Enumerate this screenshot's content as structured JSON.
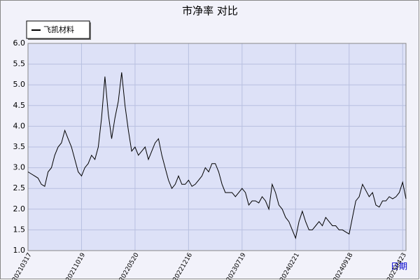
{
  "chart_data": {
    "type": "line",
    "title": "市净率 对比",
    "xlabel": "日期",
    "series": [
      {
        "name": "飞凯材料",
        "color": "#000000",
        "values": [
          2.9,
          2.85,
          2.8,
          2.75,
          2.6,
          2.55,
          2.9,
          3.0,
          3.3,
          3.5,
          3.6,
          3.9,
          3.7,
          3.5,
          3.2,
          2.9,
          2.8,
          3.0,
          3.1,
          3.3,
          3.2,
          3.5,
          4.2,
          5.2,
          4.3,
          3.7,
          4.2,
          4.6,
          5.3,
          4.5,
          3.9,
          3.4,
          3.5,
          3.3,
          3.4,
          3.5,
          3.2,
          3.4,
          3.6,
          3.7,
          3.3,
          3.0,
          2.7,
          2.5,
          2.6,
          2.8,
          2.6,
          2.6,
          2.7,
          2.55,
          2.6,
          2.7,
          2.8,
          3.0,
          2.9,
          3.1,
          3.1,
          2.9,
          2.6,
          2.4,
          2.4,
          2.4,
          2.3,
          2.4,
          2.5,
          2.4,
          2.1,
          2.2,
          2.2,
          2.15,
          2.3,
          2.2,
          2.0,
          2.6,
          2.4,
          2.1,
          2.0,
          1.8,
          1.7,
          1.5,
          1.3,
          1.7,
          1.95,
          1.7,
          1.5,
          1.5,
          1.6,
          1.7,
          1.6,
          1.8,
          1.7,
          1.6,
          1.6,
          1.5,
          1.5,
          1.45,
          1.4,
          1.8,
          2.2,
          2.3,
          2.6,
          2.45,
          2.3,
          2.4,
          2.1,
          2.05,
          2.2,
          2.2,
          2.3,
          2.25,
          2.3,
          2.4,
          2.65,
          2.25
        ]
      }
    ],
    "xlim": [
      0,
      113
    ],
    "xticks": [
      {
        "value": 0,
        "label": "20210317"
      },
      {
        "value": 16,
        "label": "20211019"
      },
      {
        "value": 32,
        "label": "20220520"
      },
      {
        "value": 48,
        "label": "20221216"
      },
      {
        "value": 64,
        "label": "20230719"
      },
      {
        "value": 80,
        "label": "20240221"
      },
      {
        "value": 96,
        "label": "20240918"
      },
      {
        "value": 112,
        "label": "20250423"
      }
    ],
    "ylim": [
      1.0,
      6.0
    ],
    "yticks": [
      {
        "value": 1,
        "label": "1.0"
      },
      {
        "value": 1.5,
        "label": "1.5"
      },
      {
        "value": 2,
        "label": "2.0"
      },
      {
        "value": 2.5,
        "label": "2.5"
      },
      {
        "value": 3,
        "label": "3.0"
      },
      {
        "value": 3.5,
        "label": "3.5"
      },
      {
        "value": 4,
        "label": "4.0"
      },
      {
        "value": 4.5,
        "label": "4.5"
      },
      {
        "value": 5,
        "label": "5.0"
      },
      {
        "value": 5.5,
        "label": "5.5"
      },
      {
        "value": 6,
        "label": "6.0"
      }
    ],
    "grid": true
  }
}
